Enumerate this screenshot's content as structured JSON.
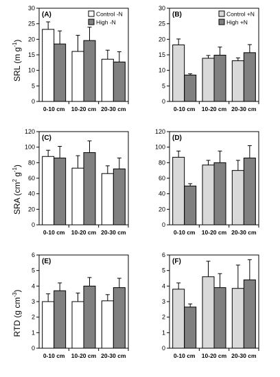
{
  "ylabels": [
    {
      "text": "SRL (m g",
      "sup": "-1",
      "tail": ")"
    },
    {
      "text": "SRA (cm",
      "sup": "2",
      "mid": " g",
      "sup2": "-1",
      "tail": ")"
    },
    {
      "text": "RTD (g cm",
      "sup": "-3",
      "tail": ")"
    }
  ],
  "colors": {
    "control_minusN": "#ffffff",
    "high_minusN": "#808080",
    "control_plusN": "#d9d9d9",
    "high_plusN": "#808080"
  },
  "chart_data": [
    {
      "type": "bar",
      "panel": "(A)",
      "categories": [
        "0-10 cm",
        "10-20 cm",
        "20-30 cm"
      ],
      "ylim": [
        0,
        30
      ],
      "yticks": [
        0,
        5,
        10,
        15,
        20,
        25,
        30
      ],
      "legend": "top-right",
      "series": [
        {
          "name": "Control -N",
          "values": [
            23.2,
            16.1,
            13.6
          ],
          "errors": [
            2.4,
            5.2,
            2.9
          ],
          "fill": "#ffffff"
        },
        {
          "name": "High -N",
          "values": [
            18.5,
            19.6,
            12.7
          ],
          "errors": [
            4.2,
            4.3,
            3.3
          ],
          "fill": "#808080"
        }
      ]
    },
    {
      "type": "bar",
      "panel": "(B)",
      "categories": [
        "0-10 cm",
        "10-20 cm",
        "20-30 cm"
      ],
      "ylim": [
        0,
        30
      ],
      "yticks": [
        0,
        5,
        10,
        15,
        20,
        25,
        30
      ],
      "legend": "top-right",
      "series": [
        {
          "name": "Control +N",
          "values": [
            18.2,
            13.9,
            13.1
          ],
          "errors": [
            1.9,
            0.9,
            0.9
          ],
          "fill": "#d9d9d9"
        },
        {
          "name": "High +N",
          "values": [
            8.5,
            14.9,
            15.7
          ],
          "errors": [
            0.4,
            2.6,
            2.6
          ],
          "fill": "#808080"
        }
      ]
    },
    {
      "type": "bar",
      "panel": "(C)",
      "categories": [
        "0-10 cm",
        "10-20 cm",
        "20-30 cm"
      ],
      "ylim": [
        0,
        120
      ],
      "yticks": [
        0,
        20,
        40,
        60,
        80,
        100,
        120
      ],
      "series": [
        {
          "values": [
            88,
            73,
            66
          ],
          "errors": [
            8,
            16,
            10
          ],
          "fill": "#ffffff"
        },
        {
          "values": [
            86,
            93,
            72
          ],
          "errors": [
            15,
            15,
            14
          ],
          "fill": "#808080"
        }
      ]
    },
    {
      "type": "bar",
      "panel": "(D)",
      "categories": [
        "0-10 cm",
        "10-20 cm",
        "20-30 cm"
      ],
      "ylim": [
        0,
        120
      ],
      "yticks": [
        0,
        20,
        40,
        60,
        80,
        100,
        120
      ],
      "series": [
        {
          "values": [
            87,
            77,
            70
          ],
          "errors": [
            8,
            6,
            13
          ],
          "fill": "#d9d9d9"
        },
        {
          "values": [
            50,
            80,
            86
          ],
          "errors": [
            3,
            15,
            16
          ],
          "fill": "#808080"
        }
      ]
    },
    {
      "type": "bar",
      "panel": "(E)",
      "categories": [
        "0-10 cm",
        "10-20 cm",
        "20-30 cm"
      ],
      "ylim": [
        0,
        6
      ],
      "yticks": [
        0,
        1,
        2,
        3,
        4,
        5,
        6
      ],
      "series": [
        {
          "values": [
            3.0,
            3.0,
            3.05
          ],
          "errors": [
            0.5,
            0.55,
            0.4
          ],
          "fill": "#ffffff"
        },
        {
          "values": [
            3.7,
            4.0,
            3.9
          ],
          "errors": [
            0.5,
            0.55,
            0.6
          ],
          "fill": "#808080"
        }
      ]
    },
    {
      "type": "bar",
      "panel": "(F)",
      "categories": [
        "0-10 cm",
        "10-20 cm",
        "20-30 cm"
      ],
      "ylim": [
        0,
        6
      ],
      "yticks": [
        0,
        1,
        2,
        3,
        4,
        5,
        6
      ],
      "series": [
        {
          "values": [
            3.8,
            4.6,
            3.85
          ],
          "errors": [
            0.4,
            1.0,
            1.5
          ],
          "fill": "#d9d9d9"
        },
        {
          "values": [
            2.65,
            3.9,
            4.4
          ],
          "errors": [
            0.2,
            0.9,
            1.3
          ],
          "fill": "#808080"
        }
      ]
    }
  ]
}
